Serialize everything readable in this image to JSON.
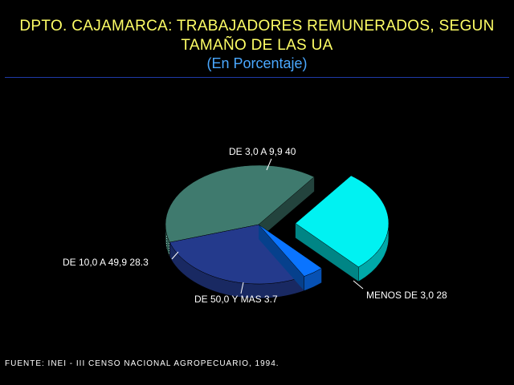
{
  "header": {
    "title_line1": "DPTO. CAJAMARCA: TRABAJADORES REMUNERADOS, SEGUN",
    "title_line2": "TAMAÑO DE LAS UA",
    "subtitle": "(En Porcentaje)"
  },
  "footer": {
    "source": "FUENTE: INEI - III CENSO NACIONAL AGROPECUARIO, 1994."
  },
  "chart_data": {
    "type": "pie",
    "style": "3d-exploded",
    "title": "DPTO. CAJAMARCA: TRABAJADORES REMUNERADOS, SEGUN TAMAÑO DE LAS UA",
    "subtitle": "(En Porcentaje)",
    "slices": [
      {
        "label": "DE 3,0 A 9,9",
        "value": 40,
        "display": "DE 3,0 A 9,9  40",
        "color": "#3f7a6e",
        "exploded": false
      },
      {
        "label": "DE 10,0 A 49,9",
        "value": 28.3,
        "display": "DE 10,0 A 49,9  28.3",
        "color": "#243a8c",
        "exploded": false
      },
      {
        "label": "DE 50,0 Y MAS",
        "value": 3.7,
        "display": "DE 50,0 Y MAS  3.7",
        "color": "#0a74ff",
        "exploded": false
      },
      {
        "label": "MENOS DE 3,0",
        "value": 28,
        "display": "MENOS DE 3,0  28",
        "color": "#00f2f2",
        "exploded": true
      }
    ]
  }
}
